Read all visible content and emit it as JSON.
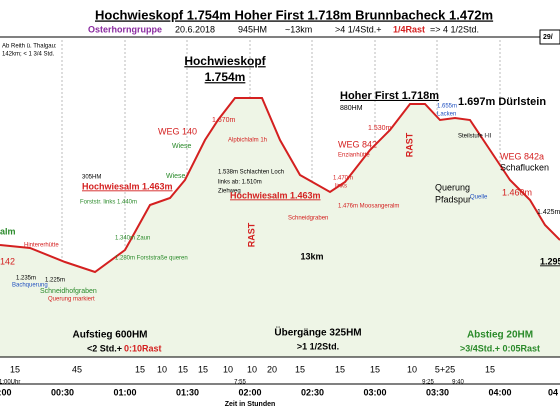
{
  "header": {
    "title": "Hochwieskopf 1.754m  Hoher First 1.718m  Brunnbacheck 1.472m",
    "group": "Osterhorngruppe",
    "date": "20.6.2018",
    "ascent": "945HM",
    "distance": "~13km",
    "time": ">4 1/4Std.+",
    "rest": "1/4Rast",
    "total": "=> 4 1/2Std.",
    "page": "29/",
    "note1": "Ab Reith ü. Thalgau:",
    "note2": "142km; < 1 3/4 Std."
  },
  "labels": [
    "Hochwieskopf",
    "1.754m",
    "Hoher First 1.718m",
    "880HM",
    "1.697m Dürlstein",
    "WEG 140",
    "1.670m",
    "Alpbichlalm 1h",
    "Wiese",
    "Wiese",
    "1.538m Schlachten Loch",
    "links ab: 1.510m",
    "Ziehweg",
    "305HM",
    "Hochwiesalm 1.463m",
    "Forststr. links 1.440m",
    "1.340m Zaun",
    "1.280m Forststraße queren",
    "Hintererhütte",
    "alm",
    "142",
    "1.235m",
    "Bachquerung",
    "1.225m",
    "Schneidhofgraben",
    "Querung markiert",
    "RAST",
    "RAST",
    "Hochwiesalm 1.463m",
    "Schneidgraben",
    "1.470m",
    "links",
    "1.476m Moosangeralm",
    "13km",
    "WEG 842",
    "Enzianhütte",
    "1.530m",
    "1.655m",
    "Lacken",
    "Steilstufe I-II",
    "WEG 842a",
    "Schaflucken",
    "Querung",
    "Pfadspur",
    "Quelle",
    "1.460m",
    "1.425m",
    "1.295",
    "Aufstieg 600HM",
    "<2 Std.+",
    "0:10Rast",
    "Übergänge 325HM",
    ">1 1/2Std.",
    "Abstieg 20HM",
    ">3/4Std.+ 0:05Rast"
  ],
  "segments": [
    "15",
    "45",
    "15",
    "10",
    "15",
    "15",
    "10",
    "10",
    "20",
    "15",
    "15",
    "15",
    "10",
    "5+25",
    "15"
  ],
  "clock": [
    "01:00Uhr",
    "7:55",
    "9:25",
    "9:40"
  ],
  "times": [
    "00:00",
    "00:30",
    "01:00",
    "01:30",
    "02:00",
    "02:30",
    "03:00",
    "03:30",
    "04:00",
    "04"
  ],
  "axis_label": "Zeit in Stunden"
}
